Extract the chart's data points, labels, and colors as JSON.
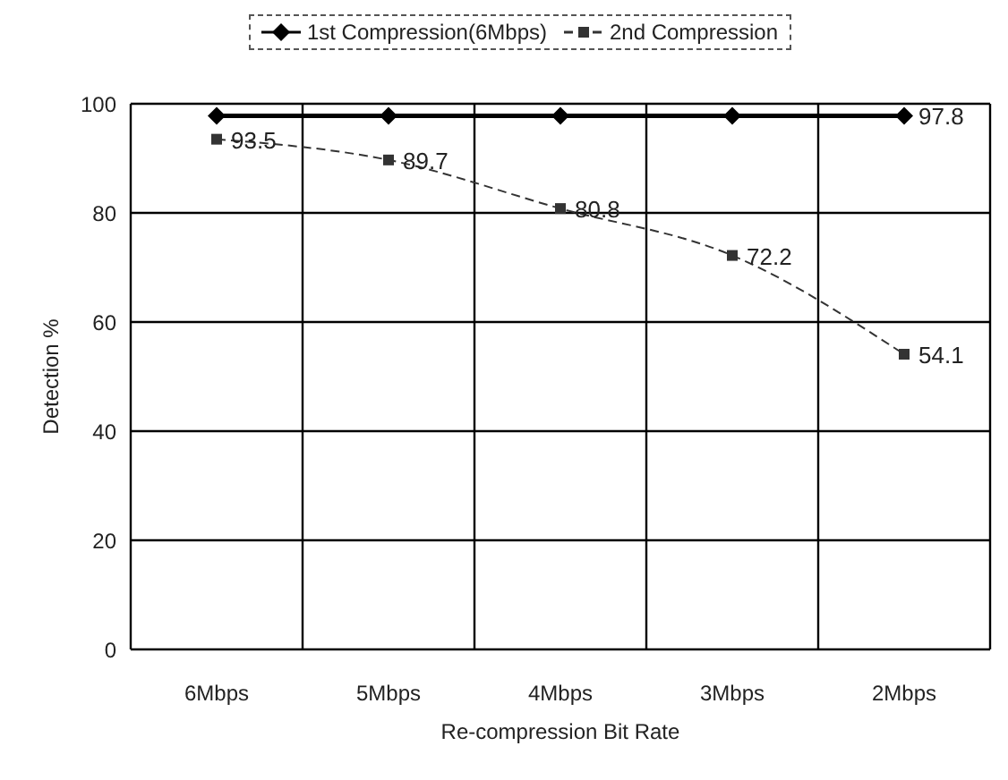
{
  "chart_data": {
    "type": "line",
    "xlabel": "Re-compression Bit Rate",
    "ylabel": "Detection %",
    "categories": [
      "6Mbps",
      "5Mbps",
      "4Mbps",
      "3Mbps",
      "2Mbps"
    ],
    "series": [
      {
        "name": "1st Compression(6Mbps)",
        "color": "#000000",
        "values": [
          97.8,
          97.8,
          97.8,
          97.8,
          97.8
        ],
        "marker": "diamond",
        "line_style": "solid",
        "value_labels": [
          null,
          null,
          null,
          null,
          "97.8"
        ]
      },
      {
        "name": "2nd Compression",
        "color": "#333333",
        "values": [
          93.5,
          89.7,
          80.8,
          72.2,
          54.1
        ],
        "marker": "square",
        "line_style": "dashed",
        "value_labels": [
          "93.5",
          "89.7",
          "80.8",
          "72.2",
          "54.1"
        ]
      }
    ],
    "ylim": [
      0,
      100
    ],
    "yticks": [
      0,
      20,
      40,
      60,
      80,
      100
    ],
    "grid": true,
    "legend": "top"
  }
}
